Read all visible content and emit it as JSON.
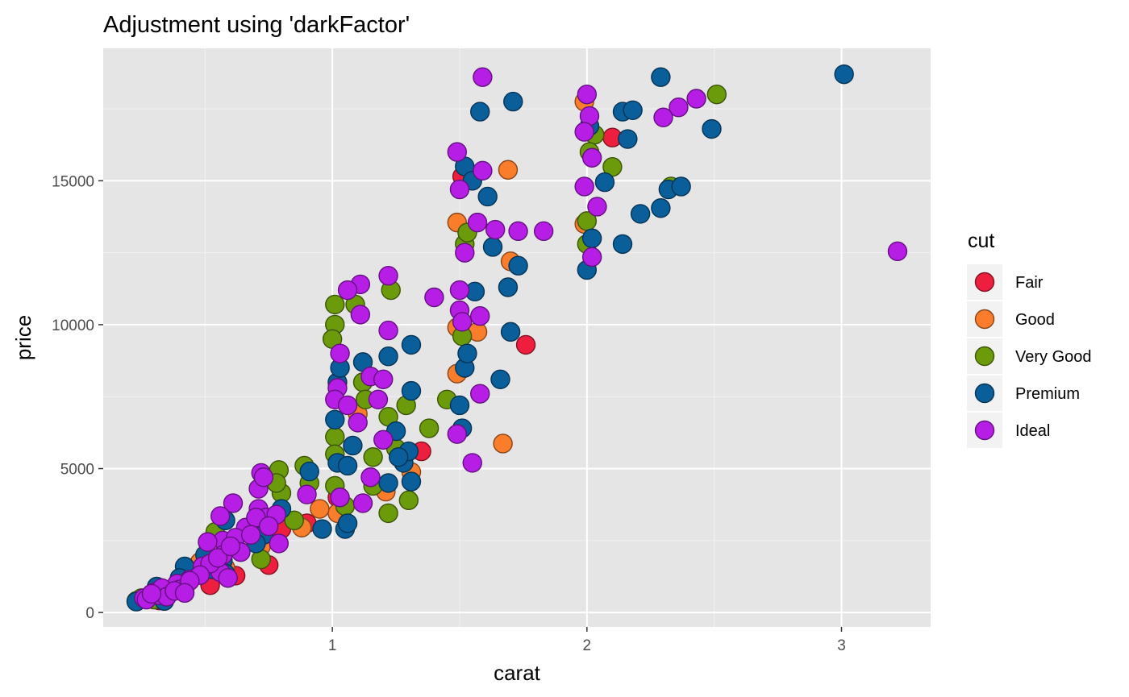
{
  "chart_data": {
    "type": "scatter",
    "title": "Adjustment using 'darkFactor'",
    "xlabel": "carat",
    "ylabel": "price",
    "xlim": [
      0.1,
      3.35
    ],
    "ylim": [
      -500,
      19600
    ],
    "x_ticks": [
      1,
      2,
      3
    ],
    "y_ticks": [
      0,
      5000,
      10000,
      15000
    ],
    "grid": true,
    "legend": {
      "title": "cut",
      "position": "right"
    },
    "series": [
      {
        "name": "Fair",
        "color": "#ee1e3e",
        "points": [
          [
            1.51,
            15150
          ],
          [
            2.1,
            16500
          ],
          [
            1.76,
            9300
          ],
          [
            0.9,
            3100
          ],
          [
            0.75,
            1650
          ],
          [
            0.62,
            1280
          ],
          [
            0.52,
            950
          ],
          [
            1.35,
            5600
          ],
          [
            0.32,
            420
          ],
          [
            0.7,
            2600
          ],
          [
            1.02,
            4000
          ],
          [
            0.8,
            2900
          ]
        ]
      },
      {
        "name": "Good",
        "color": "#f97d2b",
        "points": [
          [
            1.99,
            17750
          ],
          [
            1.69,
            15380
          ],
          [
            1.49,
            13550
          ],
          [
            1.99,
            13500
          ],
          [
            1.7,
            12200
          ],
          [
            1.49,
            9900
          ],
          [
            1.57,
            9750
          ],
          [
            1.49,
            8300
          ],
          [
            1.67,
            5870
          ],
          [
            1.31,
            4880
          ],
          [
            1.02,
            3450
          ],
          [
            0.88,
            2950
          ],
          [
            0.72,
            2300
          ],
          [
            0.58,
            1550
          ],
          [
            0.48,
            1750
          ],
          [
            0.42,
            800
          ],
          [
            0.35,
            650
          ],
          [
            0.27,
            500
          ],
          [
            1.21,
            4200
          ],
          [
            1.1,
            6900
          ],
          [
            0.95,
            3600
          ],
          [
            0.3,
            600
          ],
          [
            0.4,
            900
          ]
        ]
      },
      {
        "name": "Very Good",
        "color": "#6b9a0b",
        "points": [
          [
            2.51,
            18000
          ],
          [
            2.03,
            16600
          ],
          [
            2.01,
            16000
          ],
          [
            2.1,
            15480
          ],
          [
            2.33,
            14800
          ],
          [
            2.0,
            13600
          ],
          [
            2.0,
            12800
          ],
          [
            1.52,
            12800
          ],
          [
            1.53,
            13200
          ],
          [
            1.23,
            11200
          ],
          [
            1.01,
            10700
          ],
          [
            1.09,
            10700
          ],
          [
            1.01,
            10000
          ],
          [
            1.0,
            9500
          ],
          [
            1.51,
            9600
          ],
          [
            1.12,
            8000
          ],
          [
            1.29,
            7200
          ],
          [
            1.38,
            6400
          ],
          [
            1.45,
            7400
          ],
          [
            1.22,
            6800
          ],
          [
            1.01,
            6100
          ],
          [
            1.01,
            5500
          ],
          [
            1.25,
            5700
          ],
          [
            1.16,
            5400
          ],
          [
            0.79,
            4950
          ],
          [
            0.89,
            5100
          ],
          [
            0.91,
            4500
          ],
          [
            0.8,
            4150
          ],
          [
            0.85,
            3200
          ],
          [
            1.01,
            4400
          ],
          [
            1.16,
            4400
          ],
          [
            1.22,
            3450
          ],
          [
            1.3,
            3900
          ],
          [
            1.05,
            3700
          ],
          [
            0.78,
            4500
          ],
          [
            0.7,
            2900
          ],
          [
            0.72,
            1850
          ],
          [
            0.54,
            2800
          ],
          [
            0.52,
            1700
          ],
          [
            0.45,
            1300
          ],
          [
            0.4,
            1000
          ],
          [
            0.33,
            650
          ],
          [
            0.3,
            450
          ],
          [
            0.25,
            500
          ],
          [
            0.23,
            400
          ],
          [
            1.13,
            7400
          ]
        ]
      },
      {
        "name": "Premium",
        "color": "#0a5e9a",
        "points": [
          [
            3.01,
            18700
          ],
          [
            2.29,
            18600
          ],
          [
            1.71,
            17750
          ],
          [
            1.58,
            17400
          ],
          [
            2.14,
            17400
          ],
          [
            2.18,
            17450
          ],
          [
            2.01,
            16900
          ],
          [
            2.16,
            16450
          ],
          [
            2.49,
            16800
          ],
          [
            1.52,
            15500
          ],
          [
            1.55,
            15000
          ],
          [
            2.07,
            14950
          ],
          [
            1.61,
            14450
          ],
          [
            2.32,
            14700
          ],
          [
            2.37,
            14800
          ],
          [
            2.21,
            13850
          ],
          [
            2.29,
            14050
          ],
          [
            2.02,
            13000
          ],
          [
            1.63,
            12700
          ],
          [
            2.14,
            12800
          ],
          [
            1.73,
            12050
          ],
          [
            2.0,
            11900
          ],
          [
            1.56,
            11150
          ],
          [
            1.69,
            11300
          ],
          [
            1.7,
            9750
          ],
          [
            1.66,
            8100
          ],
          [
            1.52,
            8500
          ],
          [
            1.53,
            9000
          ],
          [
            1.5,
            7200
          ],
          [
            1.51,
            6400
          ],
          [
            1.31,
            9300
          ],
          [
            1.22,
            8900
          ],
          [
            1.12,
            8700
          ],
          [
            1.31,
            7700
          ],
          [
            1.02,
            8000
          ],
          [
            1.03,
            8500
          ],
          [
            1.25,
            6300
          ],
          [
            1.28,
            5200
          ],
          [
            1.3,
            5600
          ],
          [
            1.26,
            5400
          ],
          [
            1.31,
            4550
          ],
          [
            1.01,
            6700
          ],
          [
            1.02,
            5200
          ],
          [
            1.06,
            5100
          ],
          [
            1.08,
            5800
          ],
          [
            1.22,
            4500
          ],
          [
            0.91,
            4900
          ],
          [
            0.96,
            2900
          ],
          [
            1.05,
            2900
          ],
          [
            1.06,
            3100
          ],
          [
            0.8,
            3600
          ],
          [
            0.73,
            2700
          ],
          [
            0.58,
            3200
          ],
          [
            0.57,
            1800
          ],
          [
            0.53,
            1500
          ],
          [
            0.5,
            2000
          ],
          [
            0.42,
            1600
          ],
          [
            0.4,
            1200
          ],
          [
            0.36,
            700
          ],
          [
            0.31,
            900
          ],
          [
            0.23,
            380
          ],
          [
            0.34,
            400
          ],
          [
            0.58,
            1350
          ],
          [
            0.7,
            2400
          ]
        ]
      },
      {
        "name": "Ideal",
        "color": "#b61ee6",
        "points": [
          [
            1.59,
            18600
          ],
          [
            2.0,
            18000
          ],
          [
            2.43,
            17850
          ],
          [
            2.36,
            17550
          ],
          [
            2.01,
            17250
          ],
          [
            2.3,
            17200
          ],
          [
            1.99,
            16700
          ],
          [
            2.02,
            15800
          ],
          [
            1.49,
            16000
          ],
          [
            1.59,
            15350
          ],
          [
            1.5,
            14700
          ],
          [
            2.04,
            14100
          ],
          [
            1.99,
            14800
          ],
          [
            1.57,
            13550
          ],
          [
            1.64,
            13300
          ],
          [
            1.73,
            13250
          ],
          [
            1.83,
            13250
          ],
          [
            1.52,
            12500
          ],
          [
            2.02,
            12350
          ],
          [
            3.22,
            12550
          ],
          [
            1.22,
            11700
          ],
          [
            1.11,
            11400
          ],
          [
            1.06,
            11200
          ],
          [
            1.4,
            10950
          ],
          [
            1.11,
            10350
          ],
          [
            1.5,
            11200
          ],
          [
            1.5,
            10500
          ],
          [
            1.58,
            10300
          ],
          [
            1.51,
            10100
          ],
          [
            1.22,
            9800
          ],
          [
            1.03,
            9000
          ],
          [
            1.15,
            8200
          ],
          [
            1.2,
            8100
          ],
          [
            1.02,
            7800
          ],
          [
            1.01,
            7400
          ],
          [
            1.06,
            7200
          ],
          [
            1.18,
            7400
          ],
          [
            1.1,
            6600
          ],
          [
            1.2,
            6000
          ],
          [
            1.58,
            7600
          ],
          [
            1.49,
            6200
          ],
          [
            1.55,
            5200
          ],
          [
            0.71,
            4300
          ],
          [
            0.72,
            4850
          ],
          [
            0.73,
            4700
          ],
          [
            0.71,
            3600
          ],
          [
            0.9,
            4100
          ],
          [
            0.74,
            3300
          ],
          [
            0.78,
            3400
          ],
          [
            1.03,
            4000
          ],
          [
            1.12,
            3800
          ],
          [
            0.61,
            3800
          ],
          [
            0.56,
            3350
          ],
          [
            0.66,
            2950
          ],
          [
            0.57,
            2500
          ],
          [
            0.51,
            2450
          ],
          [
            0.7,
            3300
          ],
          [
            0.62,
            2600
          ],
          [
            0.57,
            2000
          ],
          [
            0.49,
            1600
          ],
          [
            0.44,
            1150
          ],
          [
            0.39,
            1000
          ],
          [
            0.4,
            800
          ],
          [
            0.32,
            600
          ],
          [
            0.26,
            500
          ],
          [
            0.56,
            1400
          ],
          [
            0.59,
            1200
          ],
          [
            0.64,
            2100
          ],
          [
            0.79,
            2400
          ],
          [
            1.15,
            4700
          ],
          [
            0.3,
            700
          ],
          [
            0.33,
            850
          ],
          [
            0.27,
            450
          ],
          [
            0.35,
            550
          ],
          [
            0.52,
            1700
          ],
          [
            0.48,
            1300
          ],
          [
            0.29,
            650
          ],
          [
            0.38,
            750
          ],
          [
            0.44,
            1100
          ],
          [
            0.42,
            680
          ],
          [
            0.55,
            1900
          ],
          [
            0.6,
            2300
          ],
          [
            0.68,
            2700
          ],
          [
            0.75,
            3000
          ]
        ]
      }
    ]
  }
}
